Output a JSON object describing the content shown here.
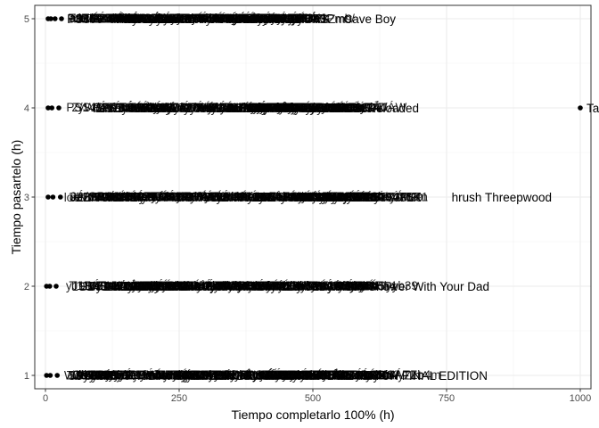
{
  "chart_data": {
    "type": "scatter",
    "title": "",
    "xlabel": "Tiempo completarlo 100% (h)",
    "ylabel": "Tiempo pasartelo (h)",
    "xlim": [
      -20,
      1020
    ],
    "ylim": [
      0.85,
      5.15
    ],
    "x_ticks": [
      0,
      250,
      500,
      750,
      1000
    ],
    "x_tick_labels": [
      "0",
      "250",
      "500",
      "750",
      "1000"
    ],
    "y_ticks": [
      1,
      2,
      3,
      4,
      5
    ],
    "y_tick_labels": [
      "1",
      "2",
      "3",
      "4",
      "5"
    ],
    "grid": true,
    "point_color": "#000000",
    "points": [
      {
        "x": 1000,
        "y": 4,
        "label": "Table Top Racing: World Tour"
      },
      {
        "x": 5,
        "y": 5,
        "label": ""
      },
      {
        "x": 10,
        "y": 5,
        "label": ""
      },
      {
        "x": 18,
        "y": 5,
        "label": ""
      },
      {
        "x": 30,
        "y": 5,
        "label": ""
      },
      {
        "x": 5,
        "y": 4,
        "label": ""
      },
      {
        "x": 12,
        "y": 4,
        "label": ""
      },
      {
        "x": 25,
        "y": 4,
        "label": ""
      },
      {
        "x": 5,
        "y": 3,
        "label": ""
      },
      {
        "x": 14,
        "y": 3,
        "label": ""
      },
      {
        "x": 28,
        "y": 3,
        "label": ""
      },
      {
        "x": 2,
        "y": 2,
        "label": ""
      },
      {
        "x": 8,
        "y": 2,
        "label": ""
      },
      {
        "x": 20,
        "y": 2,
        "label": ""
      },
      {
        "x": 2,
        "y": 1,
        "label": ""
      },
      {
        "x": 9,
        "y": 1,
        "label": ""
      },
      {
        "x": 22,
        "y": 1,
        "label": ""
      }
    ],
    "row_labels": [
      {
        "y": 5,
        "text": "Cave Boy"
      },
      {
        "y": 4,
        "text": "s: Reloaded"
      },
      {
        "y": 3,
        "text": "hrush Threepwood"
      },
      {
        "y": 2,
        "text": "u Still Shower With Your Dad"
      },
      {
        "y": 1,
        "text": "ATE MATCH FINAL EDITION"
      }
    ]
  }
}
